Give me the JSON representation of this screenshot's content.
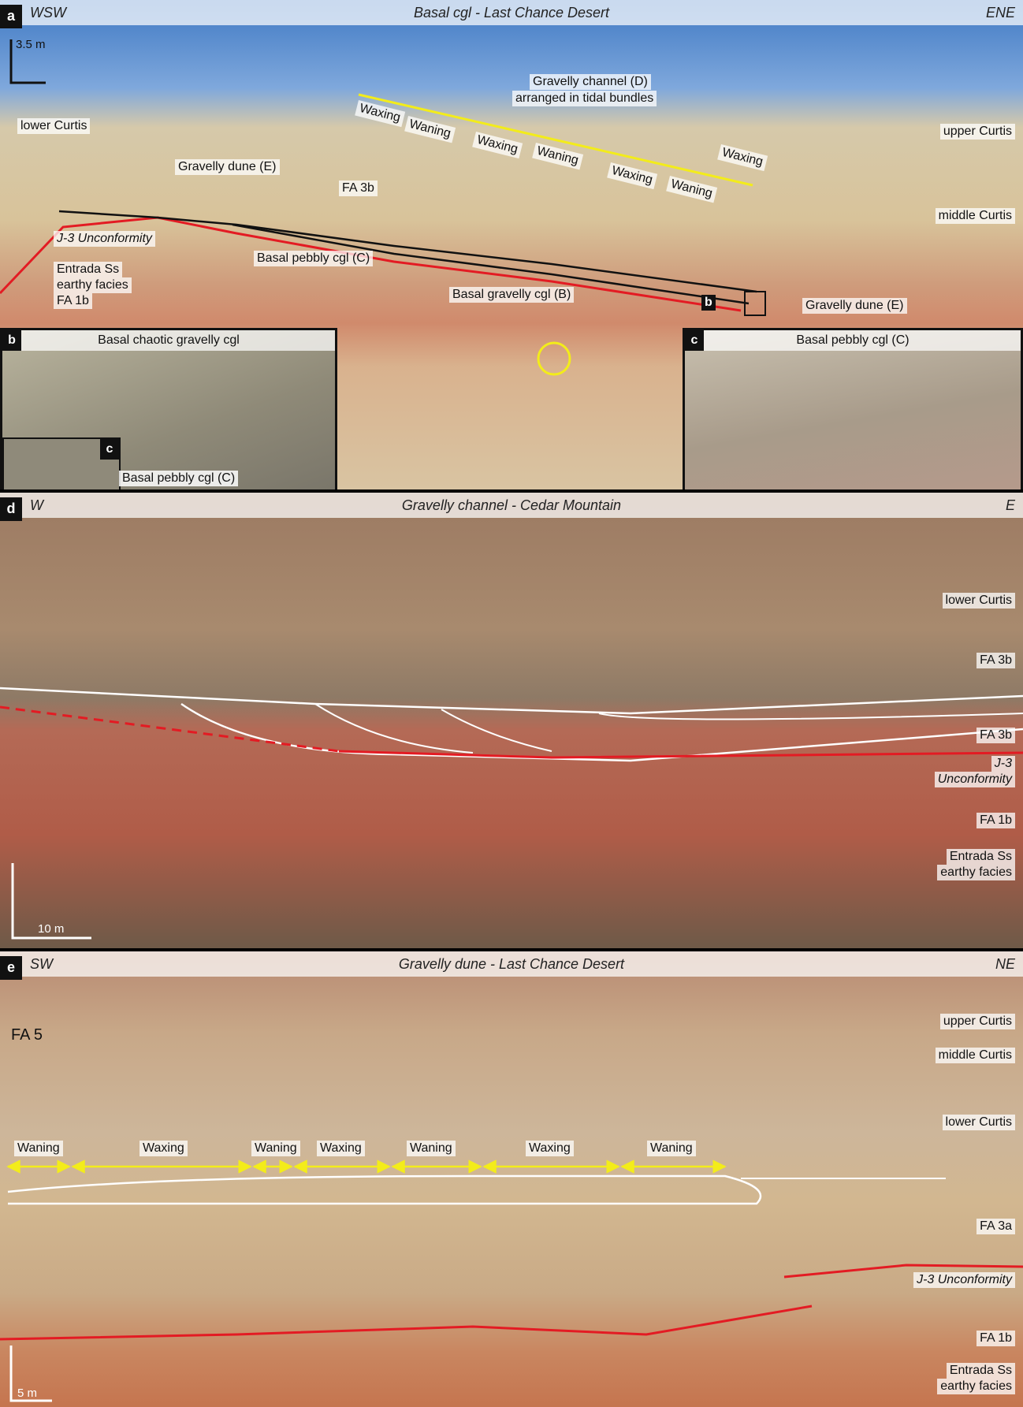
{
  "panels": [
    {
      "letter": "a",
      "left": "WSW",
      "title": "Basal cgl - Last Chance Desert",
      "right": "ENE",
      "scale": "3.5 m",
      "labels": [
        "lower Curtis",
        "Gravelly dune (E)",
        "FA 3b",
        "Gravelly channel (D)",
        "arranged in tidal bundles",
        "upper Curtis",
        "middle Curtis",
        "J-3 Unconformity",
        "Entrada Ss",
        "earthy facies",
        "FA 1b",
        "Basal pebbly cgl (C)",
        "Basal gravelly cgl (B)",
        "Gravelly dune (E)",
        "b"
      ],
      "tidal": [
        "Waxing",
        "Waning",
        "Waxing",
        "Waning",
        "Waxing",
        "Waning",
        "Waxing"
      ]
    },
    {
      "letter": "d",
      "left": "W",
      "title": "Gravelly channel - Cedar Mountain",
      "right": "E",
      "scale": "10 m",
      "labels": [
        "lower Curtis",
        "FA 3b",
        "FA 3b",
        "J-3",
        "Unconformity",
        "FA 1b",
        "Entrada Ss",
        "earthy facies"
      ]
    },
    {
      "letter": "e",
      "left": "SW",
      "title": "Gravelly dune - Last Chance Desert",
      "right": "NE",
      "scale": "5 m",
      "labels": [
        "FA 5",
        "upper Curtis",
        "middle Curtis",
        "lower Curtis",
        "FA 3a",
        "J-3 Unconformity",
        "FA 1b",
        "Entrada Ss",
        "earthy facies"
      ],
      "tidal": [
        "Waning",
        "Waxing",
        "Waning",
        "Waxing",
        "Waning",
        "Waxing",
        "Waning"
      ]
    }
  ],
  "insets": [
    {
      "letter": "b",
      "title": "Basal chaotic gravelly cgl",
      "sub_letter": "c",
      "sub_label": "Basal pebbly cgl (C)"
    },
    {
      "letter": "c",
      "title": "Basal pebbly cgl (C)"
    }
  ]
}
